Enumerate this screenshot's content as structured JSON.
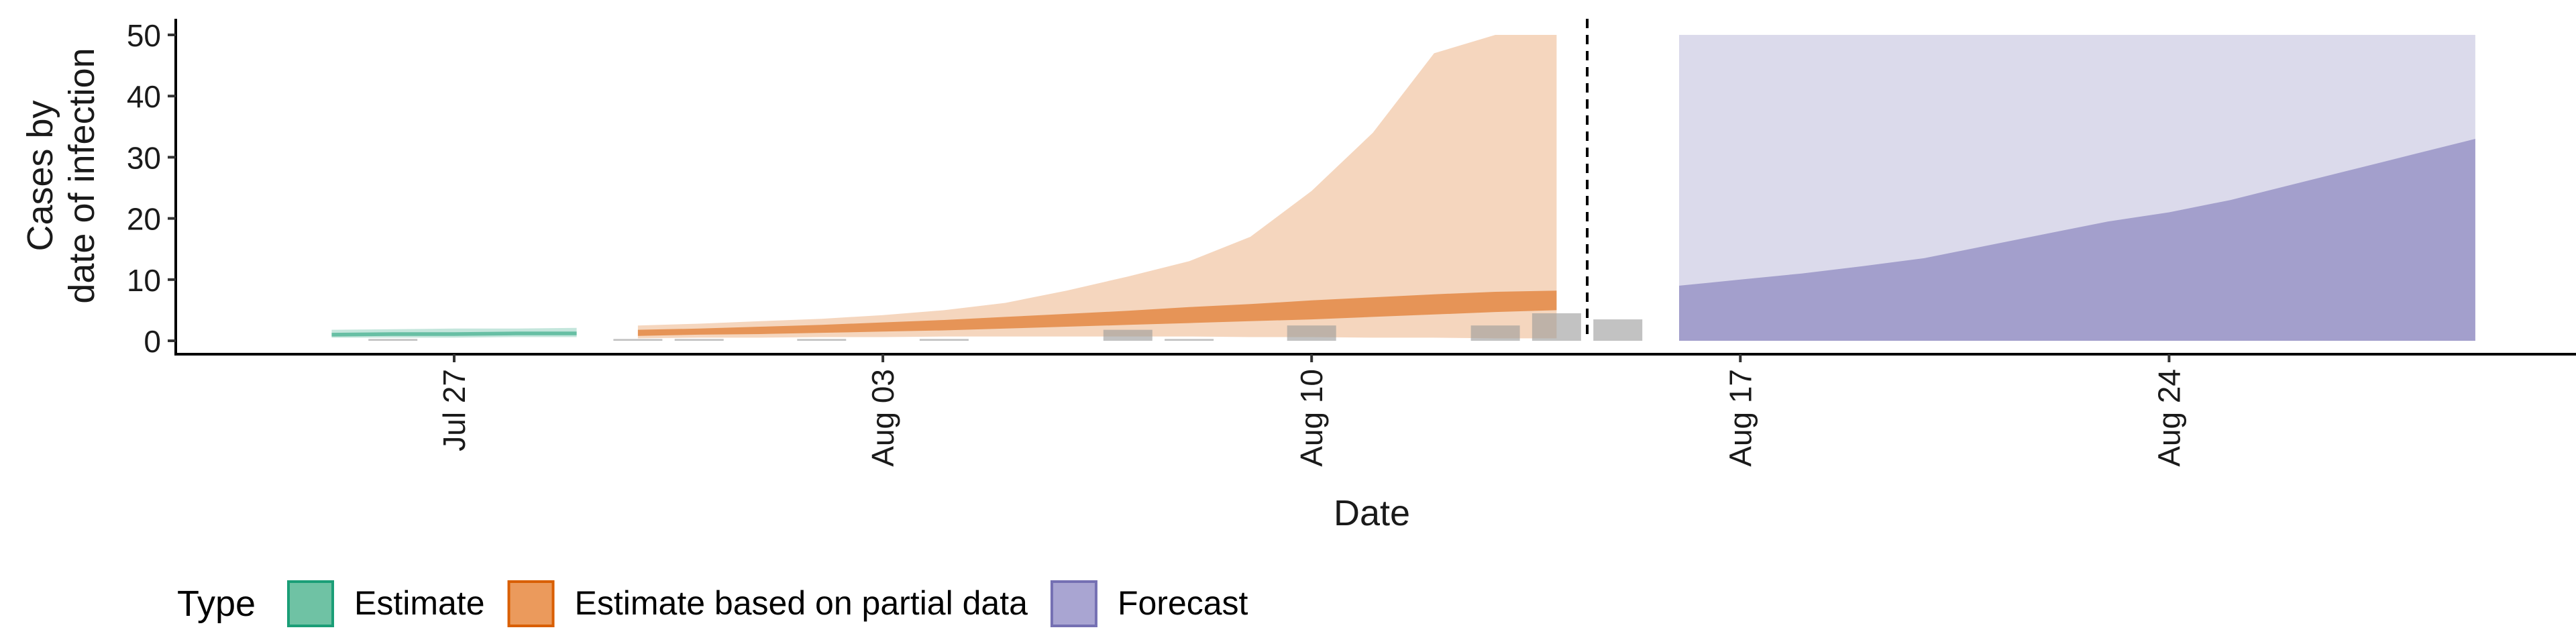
{
  "chart_data": {
    "type": "area",
    "xlabel": "Date",
    "ylabel_lines": [
      "Cases by",
      "date of infection"
    ],
    "ylim": [
      0,
      50
    ],
    "y_ticks": [
      0,
      10,
      20,
      30,
      40,
      50
    ],
    "x_ticks": [
      {
        "label": "Jul 27",
        "day": 0
      },
      {
        "label": "Aug 03",
        "day": 7
      },
      {
        "label": "Aug 10",
        "day": 14
      },
      {
        "label": "Aug 17",
        "day": 21
      },
      {
        "label": "Aug 24",
        "day": 28
      }
    ],
    "x_range_days": [
      -4.5,
      34.5
    ],
    "estimate_cutoff_day": 18.5,
    "grid": false,
    "legend_position": "bottom",
    "legend": {
      "title": "Type",
      "items": [
        {
          "label": "Estimate",
          "fill": "#6fc2a4",
          "stroke": "#1b9e77"
        },
        {
          "label": "Estimate based on partial data",
          "fill": "#eb9a5c",
          "stroke": "#d95f02"
        },
        {
          "label": "Forecast",
          "fill": "#a9a5d2",
          "stroke": "#7570b3"
        }
      ]
    },
    "series": [
      {
        "name": "Estimate",
        "color": "#1b9e77",
        "x": [
          -2,
          -1,
          0,
          1,
          2
        ],
        "lower_90": [
          0.5,
          0.5,
          0.5,
          0.6,
          0.6
        ],
        "upper_90": [
          1.8,
          1.9,
          2.0,
          2.0,
          2.1
        ],
        "lower_50": [
          0.7,
          0.8,
          0.8,
          0.9,
          0.9
        ],
        "upper_50": [
          1.3,
          1.4,
          1.4,
          1.5,
          1.5
        ]
      },
      {
        "name": "Estimate based on partial data",
        "color": "#d95f02",
        "x": [
          3,
          4,
          5,
          6,
          7,
          8,
          9,
          10,
          11,
          12,
          13,
          14,
          15,
          16,
          17,
          18
        ],
        "lower_90": [
          0.4,
          0.5,
          0.5,
          0.6,
          0.6,
          0.7,
          0.7,
          0.7,
          0.7,
          0.7,
          0.6,
          0.6,
          0.5,
          0.5,
          0.4,
          0.4
        ],
        "upper_90": [
          2.5,
          2.8,
          3.2,
          3.6,
          4.2,
          5.0,
          6.2,
          8.2,
          10.5,
          13,
          17,
          24.5,
          34,
          47,
          50,
          50
        ],
        "lower_50": [
          0.8,
          1.0,
          1.1,
          1.3,
          1.5,
          1.7,
          2.0,
          2.3,
          2.6,
          2.9,
          3.2,
          3.5,
          3.9,
          4.3,
          4.7,
          5.0
        ],
        "upper_50": [
          1.8,
          2.0,
          2.3,
          2.6,
          3.0,
          3.4,
          3.9,
          4.4,
          4.9,
          5.5,
          6.0,
          6.6,
          7.1,
          7.6,
          8.0,
          8.2
        ]
      },
      {
        "name": "Forecast",
        "color": "#7570b3",
        "x": [
          20,
          21,
          22,
          23,
          24,
          25,
          26,
          27,
          28,
          29,
          30,
          31,
          32,
          33
        ],
        "lower_90": [
          0,
          0,
          0,
          0,
          0,
          0,
          0,
          0,
          0,
          0,
          0,
          0,
          0,
          0
        ],
        "upper_90": [
          50,
          50,
          50,
          50,
          50,
          50,
          50,
          50,
          50,
          50,
          50,
          50,
          50,
          50
        ],
        "lower_50": [
          0,
          0,
          0,
          0,
          0,
          0,
          0,
          0,
          0,
          0,
          0,
          0,
          0,
          0
        ],
        "upper_50": [
          9,
          10,
          11,
          12.2,
          13.5,
          15.5,
          17.5,
          19.5,
          21,
          23,
          25.5,
          28,
          30.5,
          33
        ]
      }
    ],
    "reported_cases": {
      "color": "#999999",
      "x": [
        -1,
        3,
        4,
        6,
        8,
        11,
        12,
        14,
        17,
        18,
        19
      ],
      "values": [
        0.3,
        0.3,
        0.3,
        0.3,
        0.3,
        1.8,
        0.3,
        2.5,
        2.5,
        4.5,
        3.5
      ]
    }
  }
}
